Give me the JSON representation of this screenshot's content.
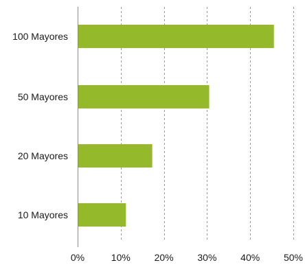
{
  "chart_data": {
    "type": "bar",
    "orientation": "horizontal",
    "categories": [
      "100 Mayores",
      "50 Mayores",
      "20 Mayores",
      "10 Mayores"
    ],
    "values": [
      45.5,
      30.5,
      17.3,
      11.2
    ],
    "xlim": [
      0,
      50
    ],
    "xticks": [
      0,
      10,
      20,
      30,
      40,
      50
    ],
    "tick_labels": [
      "0%",
      "10%",
      "20%",
      "30%",
      "40%",
      "50%"
    ],
    "grid": "vertical dashed",
    "title": "",
    "xlabel": "",
    "ylabel": "",
    "bar_color": "#94b92a",
    "grid_color": "#9a9a9a",
    "axis_color": "#8c8c8c"
  }
}
